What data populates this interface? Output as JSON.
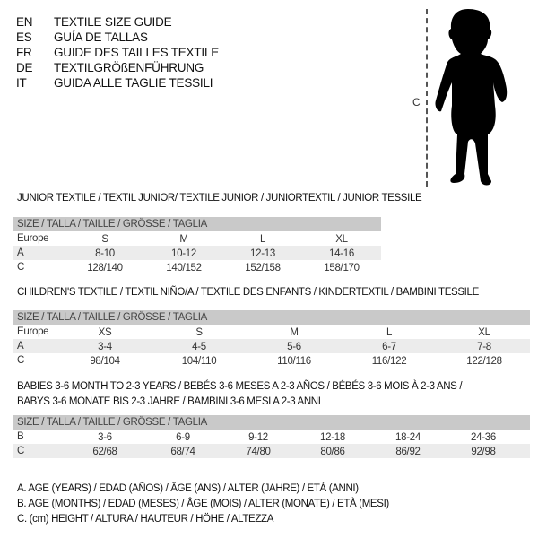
{
  "header": {
    "languages": [
      {
        "code": "EN",
        "title": "TEXTILE SIZE GUIDE"
      },
      {
        "code": "ES",
        "title": "GUÍA DE TALLAS"
      },
      {
        "code": "FR",
        "title": "GUIDE DES TAILLES TEXTILE"
      },
      {
        "code": "DE",
        "title": "TEXTILGRÖßENFÜHRUNG"
      },
      {
        "code": "IT",
        "title": "GUIDA ALLE TAGLIE TESSILI"
      }
    ]
  },
  "figure": {
    "measure_label": "C",
    "icon": "child-silhouette"
  },
  "colors": {
    "header_bar": "#c9c9c9",
    "alt_row": "#ececec"
  },
  "junior": {
    "title": "JUNIOR TEXTILE / TEXTIL JUNIOR/ TEXTILE JUNIOR / JUNIORTEXTIL / JUNIOR TESSILE",
    "header": "SIZE / TALLA / TAILLE / GRÖSSE / TAGLIA",
    "rows": [
      {
        "label": "Europe",
        "values": [
          "S",
          "M",
          "L",
          "XL"
        ]
      },
      {
        "label": "A",
        "values": [
          "8-10",
          "10-12",
          "12-13",
          "14-16"
        ]
      },
      {
        "label": "C",
        "values": [
          "128/140",
          "140/152",
          "152/158",
          "158/170"
        ]
      }
    ]
  },
  "children": {
    "title": "CHILDREN'S TEXTILE / TEXTIL NIÑO/A / TEXTILE DES ENFANTS / KINDERTEXTIL / BAMBINI TESSILE",
    "header": "SIZE / TALLA / TAILLE / GRÖSSE / TAGLIA",
    "rows": [
      {
        "label": "Europe",
        "values": [
          "XS",
          "S",
          "M",
          "L",
          "XL"
        ]
      },
      {
        "label": "A",
        "values": [
          "3-4",
          "4-5",
          "5-6",
          "6-7",
          "7-8"
        ]
      },
      {
        "label": "C",
        "values": [
          "98/104",
          "104/110",
          "110/116",
          "116/122",
          "122/128"
        ]
      }
    ]
  },
  "babies": {
    "title_line1": "BABIES 3-6 MONTH TO 2-3 YEARS / BEBÉS 3-6 MESES A 2-3 AÑOS / BÉBÉS 3-6 MOIS À 2-3 ANS /",
    "title_line2": "BABYS 3-6 MONATE BIS 2-3 JAHRE / BAMBINI 3-6 MESI A 2-3 ANNI",
    "header": "SIZE / TALLA / TAILLE / GRÖSSE / TAGLIA",
    "rows": [
      {
        "label": "B",
        "values": [
          "3-6",
          "6-9",
          "9-12",
          "12-18",
          "18-24",
          "24-36"
        ]
      },
      {
        "label": "C",
        "values": [
          "62/68",
          "68/74",
          "74/80",
          "80/86",
          "86/92",
          "92/98"
        ]
      }
    ]
  },
  "legend": [
    "A. AGE (YEARS) / EDAD (AÑOS) / ÂGE (ANS) / ALTER (JAHRE) / ETÀ (ANNI)",
    "B. AGE (MONTHS) / EDAD (MESES) / ÂGE (MOIS) / ALTER (MONATE) / ETÀ (MESI)",
    "C. (cm) HEIGHT / ALTURA / HAUTEUR / HÖHE / ALTEZZA"
  ]
}
